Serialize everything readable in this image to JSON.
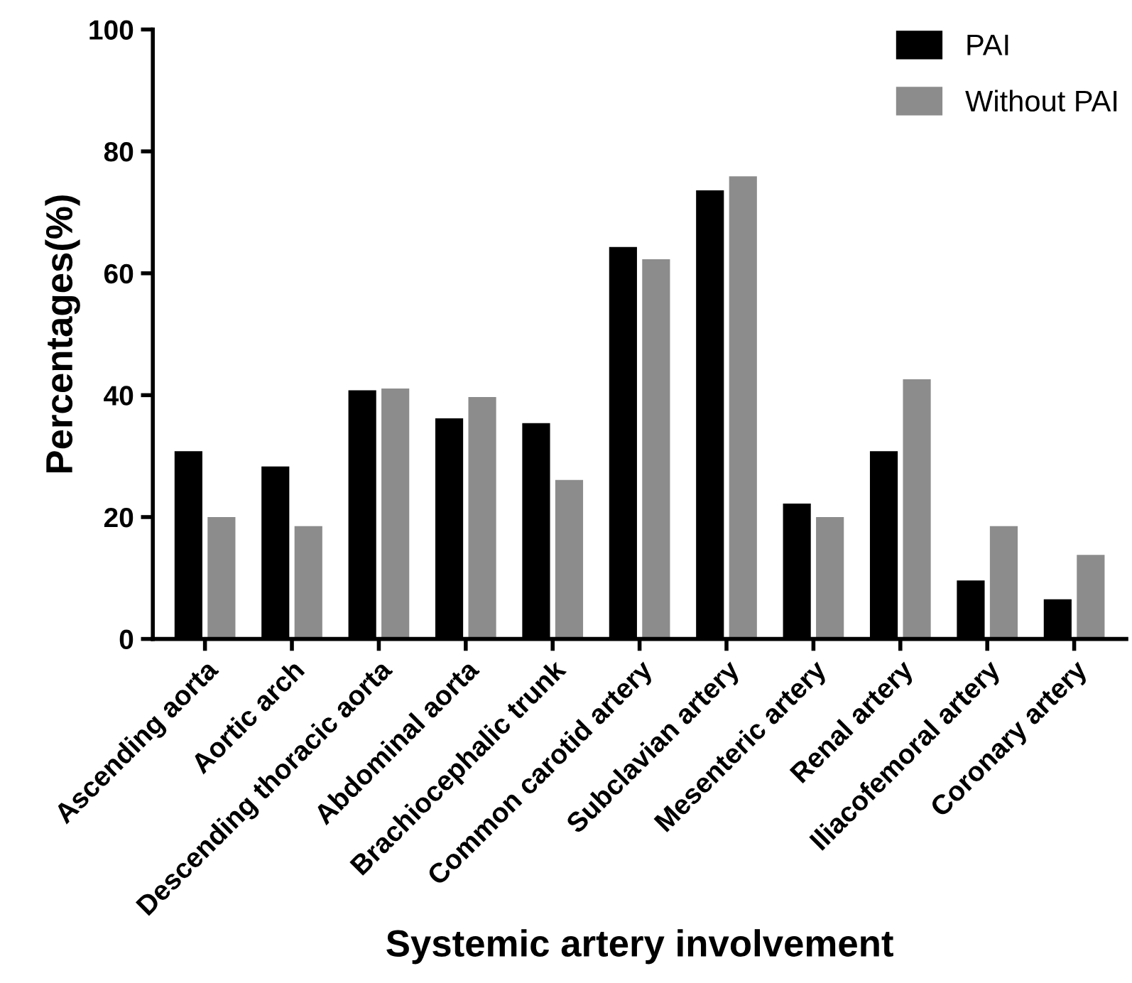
{
  "chart_data": {
    "type": "bar",
    "xlabel": "Systemic artery involvement",
    "ylabel": "Percentages(%)",
    "categories": [
      "Ascending aorta",
      "Aortic arch",
      "Descending thoracic aorta",
      "Abdominal aorta",
      "Brachiocephalic trunk",
      "Common carotid artery",
      "Subclavian artery",
      "Mesenteric artery",
      "Renal artery",
      "Iliacofemoral artery",
      "Coronary artery"
    ],
    "series": [
      {
        "name": "PAI",
        "color": "#000000",
        "values": [
          30.8,
          28.3,
          40.8,
          36.2,
          35.4,
          64.3,
          73.6,
          22.2,
          30.8,
          9.6,
          6.5
        ]
      },
      {
        "name": "Without PAI",
        "color": "#8c8c8c",
        "values": [
          20.0,
          18.5,
          41.1,
          39.7,
          26.1,
          62.3,
          75.9,
          20.0,
          42.6,
          18.5,
          13.8
        ]
      }
    ],
    "ylim": [
      0,
      100
    ],
    "yticks": [
      0,
      20,
      40,
      60,
      80,
      100
    ],
    "grid": false,
    "legend": "top right"
  }
}
